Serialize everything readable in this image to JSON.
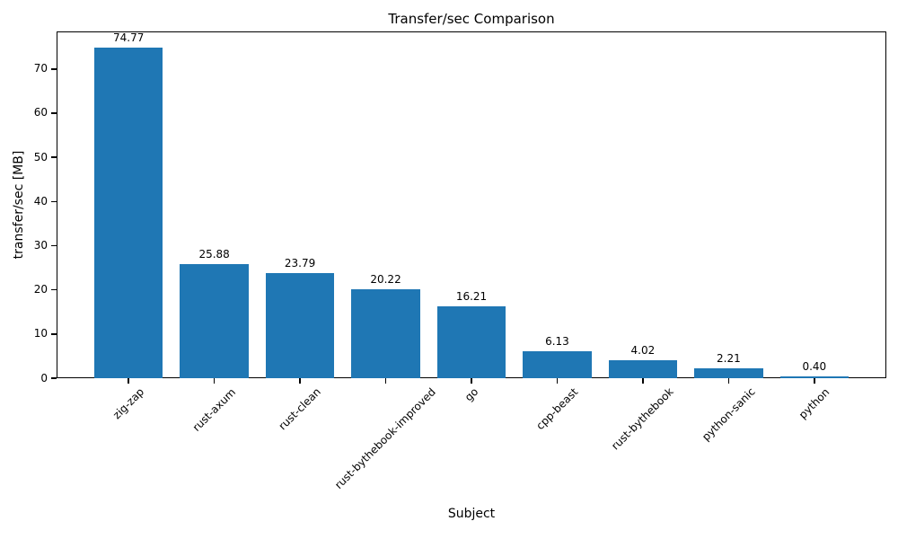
{
  "chart_data": {
    "type": "bar",
    "title": "Transfer/sec Comparison",
    "xlabel": "Subject",
    "ylabel": "transfer/sec [MB]",
    "categories": [
      "zig-zap",
      "rust-axum",
      "rust-clean",
      "rust-bythebook-improved",
      "go",
      "cpp-beast",
      "rust-bythebook",
      "python-sanic",
      "python"
    ],
    "values": [
      74.77,
      25.88,
      23.79,
      20.22,
      16.21,
      6.13,
      4.02,
      2.21,
      0.4
    ],
    "value_labels": [
      "74.77",
      "25.88",
      "23.79",
      "20.22",
      "16.21",
      "6.13",
      "4.02",
      "2.21",
      "0.40"
    ],
    "yticks": [
      0,
      10,
      20,
      30,
      40,
      50,
      60,
      70
    ],
    "ylim": [
      0,
      78.5
    ],
    "bar_color": "#1f77b4",
    "axis_color": "#000000",
    "text_color": "#000000",
    "x_tick_rotation_deg": 45,
    "grid": false,
    "legend": false
  }
}
